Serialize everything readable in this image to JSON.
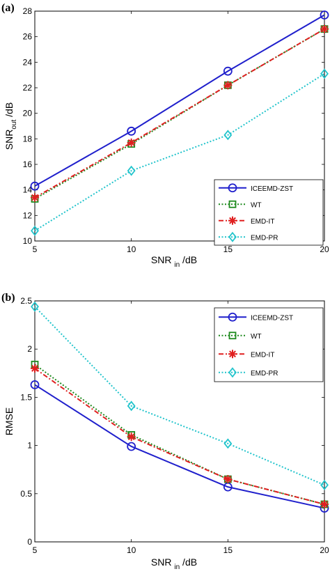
{
  "chart_data": [
    {
      "panel_label": "(a)",
      "type": "line",
      "x": [
        5,
        10,
        15,
        20
      ],
      "xticks": [
        5,
        10,
        15,
        20
      ],
      "yticks": [
        10,
        12,
        14,
        16,
        18,
        20,
        22,
        24,
        26,
        28
      ],
      "xlim": [
        5,
        20
      ],
      "ylim": [
        10,
        28
      ],
      "xlabel": {
        "main": "SNR",
        "sub": "in",
        "suffix": "/dB"
      },
      "ylabel": {
        "main": "SNR",
        "sub": "out",
        "suffix": "/dB"
      },
      "legend_position": "bottom-right",
      "series": [
        {
          "name": "ICEEMD-ZST",
          "values": [
            14.3,
            18.6,
            23.3,
            27.7
          ],
          "color": "#1f1fcc",
          "marker": "circle",
          "dash": "solid"
        },
        {
          "name": "WT",
          "values": [
            13.3,
            17.6,
            22.2,
            26.6
          ],
          "color": "#1e8a1e",
          "marker": "square",
          "dash": "dotted"
        },
        {
          "name": "EMD-IT",
          "values": [
            13.4,
            17.7,
            22.2,
            26.6
          ],
          "color": "#e02020",
          "marker": "star",
          "dash": "dashdot"
        },
        {
          "name": "EMD-PR",
          "values": [
            10.8,
            15.5,
            18.3,
            23.1
          ],
          "color": "#22c4cc",
          "marker": "diamond",
          "dash": "dotted"
        }
      ]
    },
    {
      "panel_label": "(b)",
      "type": "line",
      "x": [
        5,
        10,
        15,
        20
      ],
      "xticks": [
        5,
        10,
        15,
        20
      ],
      "yticks": [
        0,
        0.5,
        1,
        1.5,
        2,
        2.5
      ],
      "xlim": [
        5,
        20
      ],
      "ylim": [
        0,
        2.5
      ],
      "xlabel": {
        "main": "SNR",
        "sub": "in",
        "suffix": "/dB"
      },
      "ylabel": {
        "main": "RMSE",
        "sub": "",
        "suffix": ""
      },
      "legend_position": "top-right",
      "series": [
        {
          "name": "ICEEMD-ZST",
          "values": [
            1.63,
            0.99,
            0.57,
            0.35
          ],
          "color": "#1f1fcc",
          "marker": "circle",
          "dash": "solid"
        },
        {
          "name": "WT",
          "values": [
            1.84,
            1.11,
            0.65,
            0.39
          ],
          "color": "#1e8a1e",
          "marker": "square",
          "dash": "dotted"
        },
        {
          "name": "EMD-IT",
          "values": [
            1.8,
            1.09,
            0.65,
            0.39
          ],
          "color": "#e02020",
          "marker": "star",
          "dash": "dashdot"
        },
        {
          "name": "EMD-PR",
          "values": [
            2.44,
            1.41,
            1.02,
            0.59
          ],
          "color": "#22c4cc",
          "marker": "diamond",
          "dash": "dotted"
        }
      ]
    }
  ]
}
